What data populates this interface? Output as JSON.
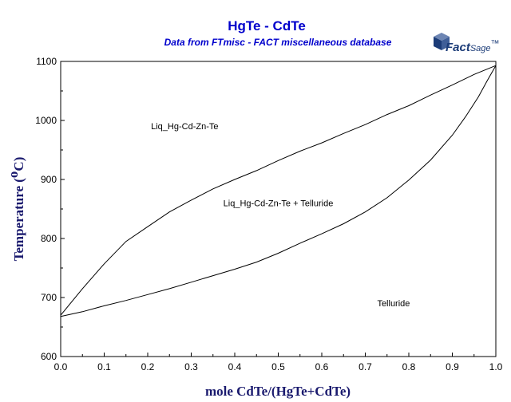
{
  "chart_data": {
    "type": "line",
    "title": "HgTe - CdTe",
    "subtitle": "Data from FTmisc - FACT miscellaneous database",
    "xlabel": "mole CdTe/(HgTe+CdTe)",
    "ylabel_main": "Temperature (",
    "ylabel_degree": "o",
    "ylabel_unit": "C)",
    "xlim": [
      0,
      1
    ],
    "ylim": [
      600,
      1100
    ],
    "x_ticks": [
      "0.0",
      "0.1",
      "0.2",
      "0.3",
      "0.4",
      "0.5",
      "0.6",
      "0.7",
      "0.8",
      "0.9",
      "1.0"
    ],
    "y_ticks": [
      "600",
      "700",
      "800",
      "900",
      "1000",
      "1100"
    ],
    "series": [
      {
        "key": "liquidus",
        "x": [
          0.0,
          0.05,
          0.1,
          0.15,
          0.2,
          0.25,
          0.3,
          0.35,
          0.4,
          0.45,
          0.5,
          0.55,
          0.6,
          0.65,
          0.7,
          0.75,
          0.8,
          0.85,
          0.9,
          0.95,
          1.0
        ],
        "y": [
          670,
          715,
          757,
          795,
          820,
          845,
          865,
          884,
          900,
          915,
          932,
          948,
          962,
          978,
          993,
          1010,
          1025,
          1043,
          1060,
          1078,
          1093
        ]
      },
      {
        "key": "solidus",
        "x": [
          0.0,
          0.05,
          0.1,
          0.15,
          0.2,
          0.25,
          0.3,
          0.35,
          0.4,
          0.45,
          0.5,
          0.55,
          0.6,
          0.65,
          0.7,
          0.75,
          0.8,
          0.85,
          0.9,
          0.93,
          0.96,
          0.98,
          1.0
        ],
        "y": [
          668,
          676,
          686,
          695,
          705,
          715,
          726,
          737,
          748,
          760,
          775,
          792,
          808,
          825,
          845,
          869,
          899,
          933,
          975,
          1006,
          1040,
          1067,
          1093
        ]
      }
    ],
    "annotations": [
      {
        "key": "liquid",
        "text": "Liq_Hg-Cd-Zn-Te",
        "x": 0.285,
        "y": 985
      },
      {
        "key": "two-phase",
        "text": "Liq_Hg-Cd-Zn-Te + Telluride",
        "x": 0.5,
        "y": 855
      },
      {
        "key": "solid",
        "text": "Telluride",
        "x": 0.765,
        "y": 685
      }
    ],
    "grid": false,
    "legend": "none"
  },
  "logo": {
    "name": "FactSage",
    "main": "Fact",
    "sub": "Sage",
    "mark": "™"
  },
  "colors": {
    "title": "#0000cc",
    "axis_label": "#1a1a6e",
    "line": "#000000",
    "logo": "#1c3c78"
  }
}
